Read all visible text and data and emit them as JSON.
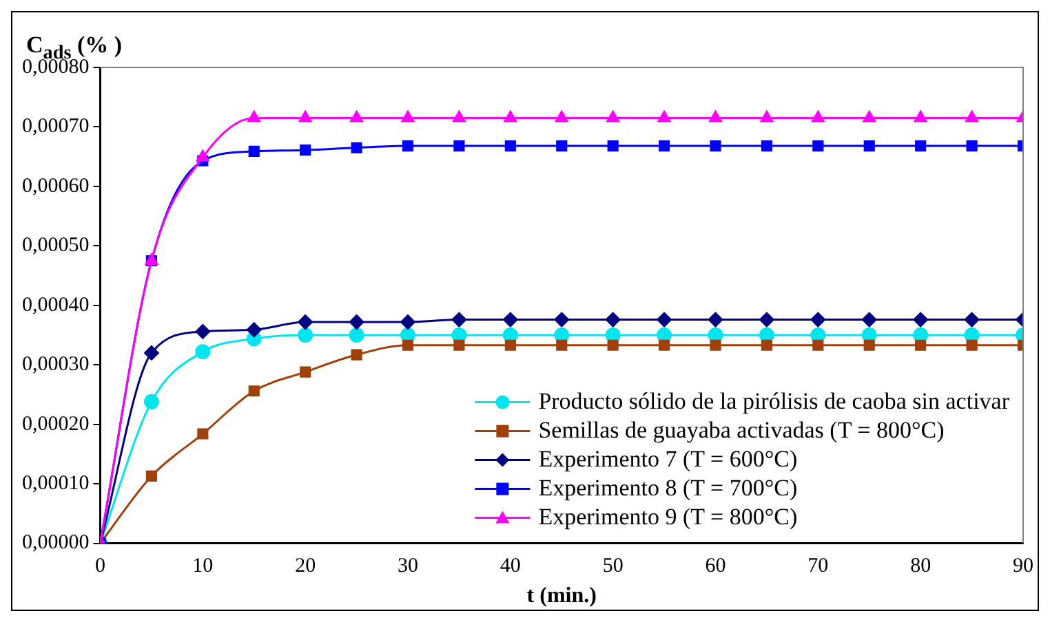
{
  "chart_data": {
    "type": "line",
    "ylabel": "C$_{ads}$ (% )",
    "xlabel": "t (min.)",
    "x": [
      0,
      5,
      10,
      15,
      20,
      25,
      30,
      35,
      40,
      45,
      50,
      55,
      60,
      65,
      70,
      75,
      80,
      85,
      90
    ],
    "series": [
      {
        "name": "Producto sólido de la pirólisis de caoba sin activar",
        "color": "#00e5ee",
        "marker": "circle",
        "values": [
          0,
          0.000238,
          0.000322,
          0.000344,
          0.00035,
          0.00035,
          0.00035,
          0.00035,
          0.00035,
          0.00035,
          0.00035,
          0.00035,
          0.00035,
          0.00035,
          0.00035,
          0.00035,
          0.00035,
          0.00035,
          0.00035
        ]
      },
      {
        "name": "Semillas de guayaba activadas (T = 800°C)",
        "color": "#a0400a",
        "marker": "square",
        "values": [
          0,
          0.000113,
          0.000184,
          0.000256,
          0.000288,
          0.000317,
          0.000333,
          0.000333,
          0.000333,
          0.000333,
          0.000333,
          0.000333,
          0.000333,
          0.000333,
          0.000333,
          0.000333,
          0.000333,
          0.000333,
          0.000333
        ]
      },
      {
        "name": "Experimento 7 (T = 600°C)",
        "color": "#000080",
        "marker": "diamond",
        "values": [
          0,
          0.00032,
          0.000356,
          0.000359,
          0.000372,
          0.000372,
          0.000372,
          0.000376,
          0.000376,
          0.000376,
          0.000376,
          0.000376,
          0.000376,
          0.000376,
          0.000376,
          0.000376,
          0.000376,
          0.000376,
          0.000376
        ]
      },
      {
        "name": "Experimento 8 (T = 700°C)",
        "color": "#0000ff",
        "marker": "square",
        "values": [
          0,
          0.000475,
          0.000643,
          0.000659,
          0.000661,
          0.000665,
          0.000668,
          0.000668,
          0.000668,
          0.000668,
          0.000668,
          0.000668,
          0.000668,
          0.000668,
          0.000668,
          0.000668,
          0.000668,
          0.000668,
          0.000668
        ]
      },
      {
        "name": "Experimento 9 (T = 800°C)",
        "color": "#ff00ff",
        "marker": "triangle",
        "values": [
          0,
          0.000475,
          0.000649,
          0.000715,
          0.000715,
          0.000715,
          0.000715,
          0.000715,
          0.000715,
          0.000715,
          0.000715,
          0.000715,
          0.000715,
          0.000715,
          0.000715,
          0.000715,
          0.000715,
          0.000715,
          0.000715
        ]
      }
    ],
    "xlim": [
      0,
      90
    ],
    "xticks": [
      0,
      10,
      20,
      30,
      40,
      50,
      60,
      70,
      80,
      90
    ],
    "ylim": [
      0,
      0.0008
    ],
    "yticks": [
      {
        "value": 0,
        "label": "0,00000"
      },
      {
        "value": 0.0001,
        "label": "0,00010"
      },
      {
        "value": 0.0002,
        "label": "0,00020"
      },
      {
        "value": 0.0003,
        "label": "0,00030"
      },
      {
        "value": 0.0004,
        "label": "0,00040"
      },
      {
        "value": 0.0005,
        "label": "0,00050"
      },
      {
        "value": 0.0006,
        "label": "0,00060"
      },
      {
        "value": 0.0007,
        "label": "0,00070"
      },
      {
        "value": 0.0008,
        "label": "0,00080"
      }
    ],
    "grid": false,
    "legend": "bottom right",
    "line_style": "solid"
  }
}
